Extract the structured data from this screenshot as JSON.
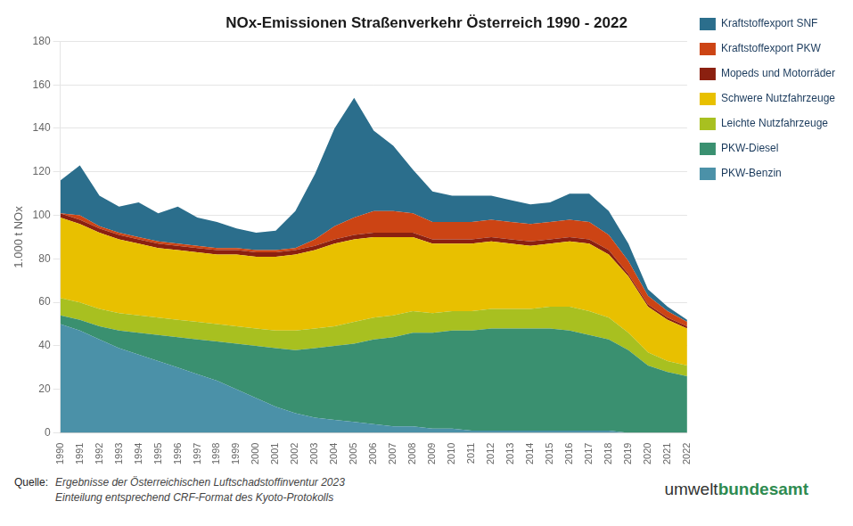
{
  "chart_data": {
    "type": "area",
    "title": "NOx-Emissionen Straßenverkehr Österreich 1990 - 2022",
    "ylabel": "1.000 t NOx",
    "categories": [
      1990,
      1991,
      1992,
      1993,
      1994,
      1995,
      1996,
      1997,
      1998,
      1999,
      2000,
      2001,
      2002,
      2003,
      2004,
      2005,
      2006,
      2007,
      2008,
      2009,
      2010,
      2011,
      2012,
      2013,
      2014,
      2015,
      2016,
      2017,
      2018,
      2019,
      2020,
      2021,
      2022
    ],
    "series": [
      {
        "name": "PKW-Benzin",
        "color": "#4B91A8",
        "values": [
          50,
          47,
          43,
          39,
          36,
          33,
          30,
          27,
          24,
          20,
          16,
          12,
          9,
          7,
          6,
          5,
          4,
          3,
          3,
          2,
          2,
          1,
          1,
          1,
          1,
          1,
          1,
          1,
          1,
          0,
          0,
          0,
          0
        ]
      },
      {
        "name": "PKW-Diesel",
        "color": "#3A9070",
        "values": [
          4,
          5,
          6,
          8,
          10,
          12,
          14,
          16,
          18,
          21,
          24,
          27,
          29,
          32,
          34,
          36,
          39,
          41,
          43,
          44,
          45,
          46,
          47,
          47,
          47,
          47,
          46,
          44,
          42,
          38,
          31,
          28,
          26
        ]
      },
      {
        "name": "Leichte Nutzfahrzeuge",
        "color": "#A8C020",
        "values": [
          8,
          8,
          8,
          8,
          8,
          8,
          8,
          8,
          8,
          8,
          8,
          8,
          9,
          9,
          9,
          10,
          10,
          10,
          10,
          9,
          9,
          9,
          9,
          9,
          9,
          10,
          11,
          11,
          10,
          8,
          6,
          5,
          5
        ]
      },
      {
        "name": "Schwere Nutzfahrzeuge",
        "color": "#E8C000",
        "values": [
          37,
          36,
          35,
          34,
          33,
          32,
          32,
          32,
          32,
          33,
          33,
          34,
          35,
          36,
          38,
          38,
          37,
          36,
          34,
          32,
          31,
          31,
          31,
          30,
          29,
          29,
          30,
          31,
          29,
          26,
          21,
          19,
          17
        ]
      },
      {
        "name": "Mopeds und Motorräder",
        "color": "#8B2010",
        "values": [
          2,
          2,
          2,
          2,
          2,
          2,
          2,
          2,
          2,
          2,
          2,
          2,
          2,
          2,
          2,
          2,
          2,
          2,
          2,
          2,
          2,
          2,
          2,
          2,
          2,
          2,
          2,
          2,
          2,
          1,
          1,
          1,
          1
        ]
      },
      {
        "name": "Kraftstoffexport PKW",
        "color": "#CC4414",
        "values": [
          0,
          2,
          1,
          1,
          1,
          1,
          1,
          1,
          1,
          1,
          1,
          1,
          1,
          3,
          6,
          8,
          10,
          10,
          9,
          8,
          8,
          8,
          8,
          8,
          8,
          8,
          8,
          8,
          7,
          6,
          4,
          3,
          2
        ]
      },
      {
        "name": "Kraftstoffexport SNF",
        "color": "#2B6E8C",
        "values": [
          15,
          23,
          14,
          12,
          16,
          13,
          17,
          13,
          12,
          9,
          8,
          9,
          17,
          30,
          45,
          55,
          37,
          30,
          20,
          14,
          12,
          12,
          11,
          10,
          9,
          9,
          12,
          13,
          11,
          8,
          3,
          2,
          1
        ]
      }
    ],
    "stacked": true,
    "ylim": [
      0,
      180
    ],
    "yticks": [
      0,
      20,
      40,
      60,
      80,
      100,
      120,
      140,
      160,
      180
    ],
    "grid": true,
    "legend": "right",
    "annotations": [
      "Quelle:",
      "Ergebnisse der Österreichischen Luftschadstoffinventur 2023",
      "Einteilung  entsprechend CRF-Format des Kyoto-Protokolls",
      "umwelt",
      "bundesamt"
    ]
  }
}
